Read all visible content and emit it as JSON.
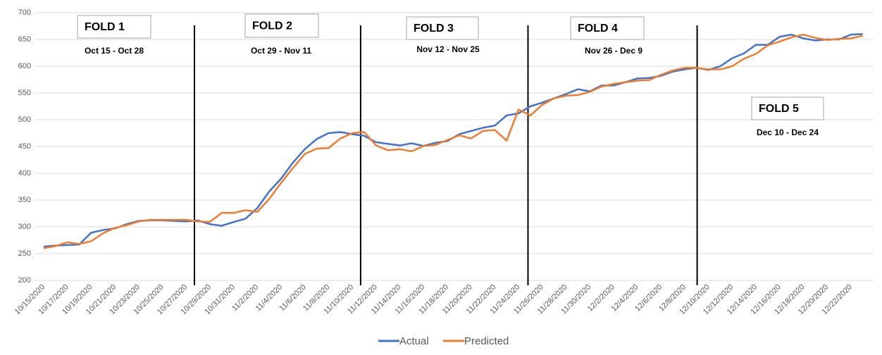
{
  "chart_data": {
    "type": "line",
    "categories": [
      "10/15/2020",
      null,
      "10/17/2020",
      null,
      "10/19/2020",
      null,
      "10/21/2020",
      null,
      "10/23/2020",
      null,
      "10/25/2020",
      null,
      "10/27/2020",
      null,
      "10/29/2020",
      null,
      "10/31/2020",
      null,
      "11/2/2020",
      null,
      "11/4/2020",
      null,
      "11/6/2020",
      null,
      "11/8/2020",
      null,
      "11/10/2020",
      null,
      "11/12/2020",
      null,
      "11/14/2020",
      null,
      "11/16/2020",
      null,
      "11/18/2020",
      null,
      "11/20/2020",
      null,
      "11/22/2020",
      null,
      "11/24/2020",
      null,
      "11/26/2020",
      null,
      "11/28/2020",
      null,
      "11/30/2020",
      null,
      "12/2/2020",
      null,
      "12/4/2020",
      null,
      "12/6/2020",
      null,
      "12/8/2020",
      null,
      "12/10/2020",
      null,
      "12/12/2020",
      null,
      "12/14/2020",
      null,
      "12/16/2020",
      null,
      "12/18/2020",
      null,
      "12/20/2020",
      null,
      "12/22/2020",
      null
    ],
    "series": [
      {
        "name": "Actual",
        "color": "#4472c4",
        "values": [
          263,
          265,
          266,
          267,
          289,
          294,
          297,
          305,
          311,
          312,
          312,
          311,
          310,
          312,
          305,
          302,
          309,
          315,
          335,
          366,
          390,
          420,
          445,
          464,
          475,
          477,
          473,
          470,
          458,
          455,
          452,
          456,
          451,
          457,
          460,
          473,
          479,
          485,
          489,
          508,
          512,
          525,
          532,
          540,
          548,
          557,
          553,
          564,
          564,
          570,
          577,
          578,
          582,
          590,
          594,
          597,
          593,
          600,
          615,
          624,
          640,
          640,
          655,
          659,
          652,
          648,
          650,
          650,
          659,
          660
        ]
      },
      {
        "name": "Predicted",
        "color": "#ed7d31",
        "values": [
          260,
          264,
          271,
          268,
          273,
          288,
          298,
          303,
          310,
          313,
          313,
          313,
          313,
          310,
          309,
          326,
          326,
          331,
          328,
          352,
          382,
          410,
          436,
          446,
          447,
          465,
          475,
          477,
          452,
          443,
          445,
          441,
          451,
          453,
          462,
          471,
          465,
          479,
          481,
          461,
          519,
          508,
          528,
          540,
          545,
          546,
          552,
          562,
          567,
          570,
          573,
          574,
          584,
          592,
          597,
          597,
          594,
          594,
          600,
          614,
          623,
          639,
          646,
          654,
          659,
          653,
          649,
          651,
          652,
          657
        ]
      }
    ],
    "ylim": [
      200,
      700
    ],
    "yticks": [
      200,
      250,
      300,
      350,
      400,
      450,
      500,
      550,
      600,
      650,
      700
    ],
    "grid": true,
    "legend": "bottom",
    "annotations": [
      {
        "label": "FOLD 1",
        "range": "Oct 15 - Oct 28"
      },
      {
        "label": "FOLD 2",
        "range": "Oct 29 - Nov 11"
      },
      {
        "label": "FOLD 3",
        "range": "Nov 12 - Nov 25"
      },
      {
        "label": "FOLD 4",
        "range": "Nov 26 - Dec 9"
      },
      {
        "label": "FOLD 5",
        "range": "Dec 10 - Dec 24"
      }
    ]
  }
}
